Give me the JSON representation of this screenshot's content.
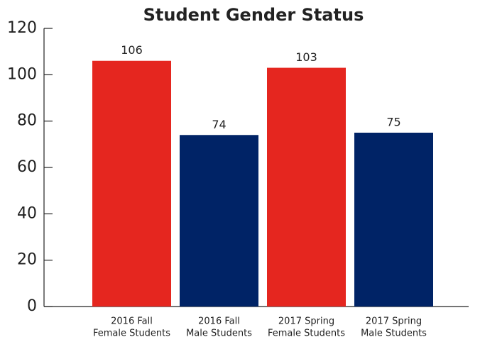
{
  "chart_data": {
    "type": "bar",
    "title": "Student Gender Status",
    "categories": [
      [
        "2016 Fall",
        "Female Students"
      ],
      [
        "2016 Fall",
        "Male Students"
      ],
      [
        "2017 Spring",
        "Female Students"
      ],
      [
        "2017 Spring",
        "Male Students"
      ]
    ],
    "values": [
      106,
      74,
      103,
      75
    ],
    "colors": [
      "#e5261f",
      "#002366",
      "#e5261f",
      "#002366"
    ],
    "ylim": [
      0,
      120
    ],
    "yticks": [
      0,
      20,
      40,
      60,
      80,
      100,
      120
    ],
    "grid": false
  }
}
